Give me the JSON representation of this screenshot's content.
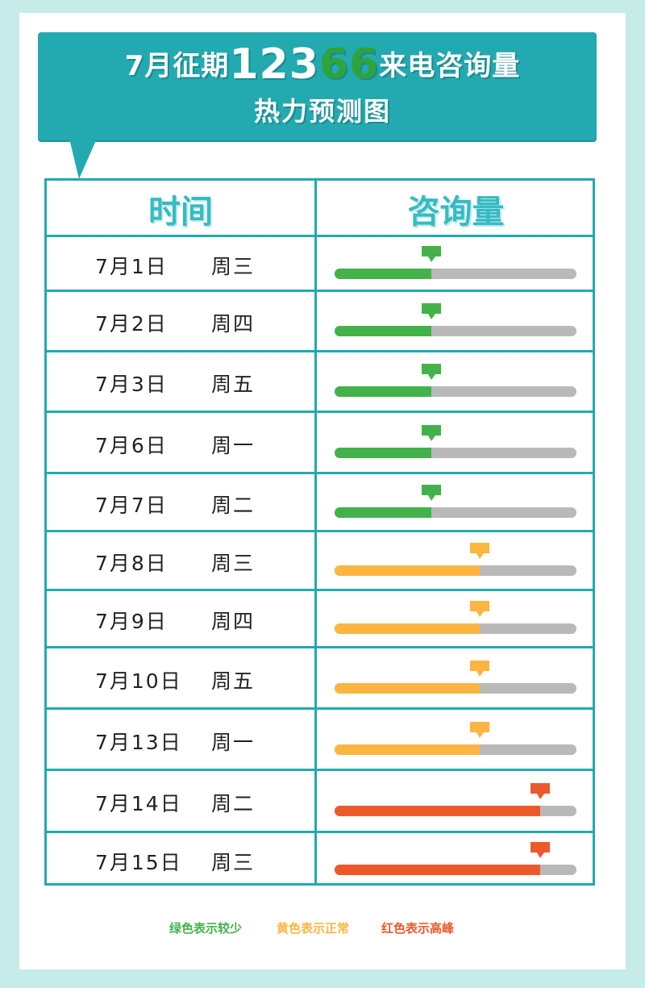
{
  "title": {
    "prefix": "7月征期",
    "num_a": "123",
    "num_b": "66",
    "suffix": "来电咨询量",
    "line2": "热力预测图"
  },
  "table_headers": {
    "time": "时间",
    "volume": "咨询量"
  },
  "colors": {
    "low": "#43b24a",
    "normal": "#fbb540",
    "peak": "#ec5a2b",
    "track": "#b9b9b9",
    "accent": "#22aab0"
  },
  "chart_data": {
    "type": "bar",
    "categories": [
      "7月1日",
      "7月2日",
      "7月3日",
      "7月6日",
      "7月7日",
      "7月8日",
      "7月9日",
      "7月10日",
      "7月13日",
      "7月14日",
      "7月15日"
    ],
    "weekdays": [
      "周三",
      "周四",
      "周五",
      "周一",
      "周二",
      "周三",
      "周四",
      "周五",
      "周一",
      "周二",
      "周三"
    ],
    "values": [
      0.4,
      0.4,
      0.4,
      0.4,
      0.4,
      0.6,
      0.6,
      0.6,
      0.6,
      0.85,
      0.85
    ],
    "levels": [
      "low",
      "low",
      "low",
      "low",
      "low",
      "normal",
      "normal",
      "normal",
      "normal",
      "peak",
      "peak"
    ],
    "ylim": [
      0,
      1
    ]
  },
  "legend": [
    {
      "label": "绿色表示较少",
      "color": "#43b24a"
    },
    {
      "label": "黄色表示正常",
      "color": "#fbb540"
    },
    {
      "label": "红色表示高峰",
      "color": "#ec5a2b"
    }
  ]
}
